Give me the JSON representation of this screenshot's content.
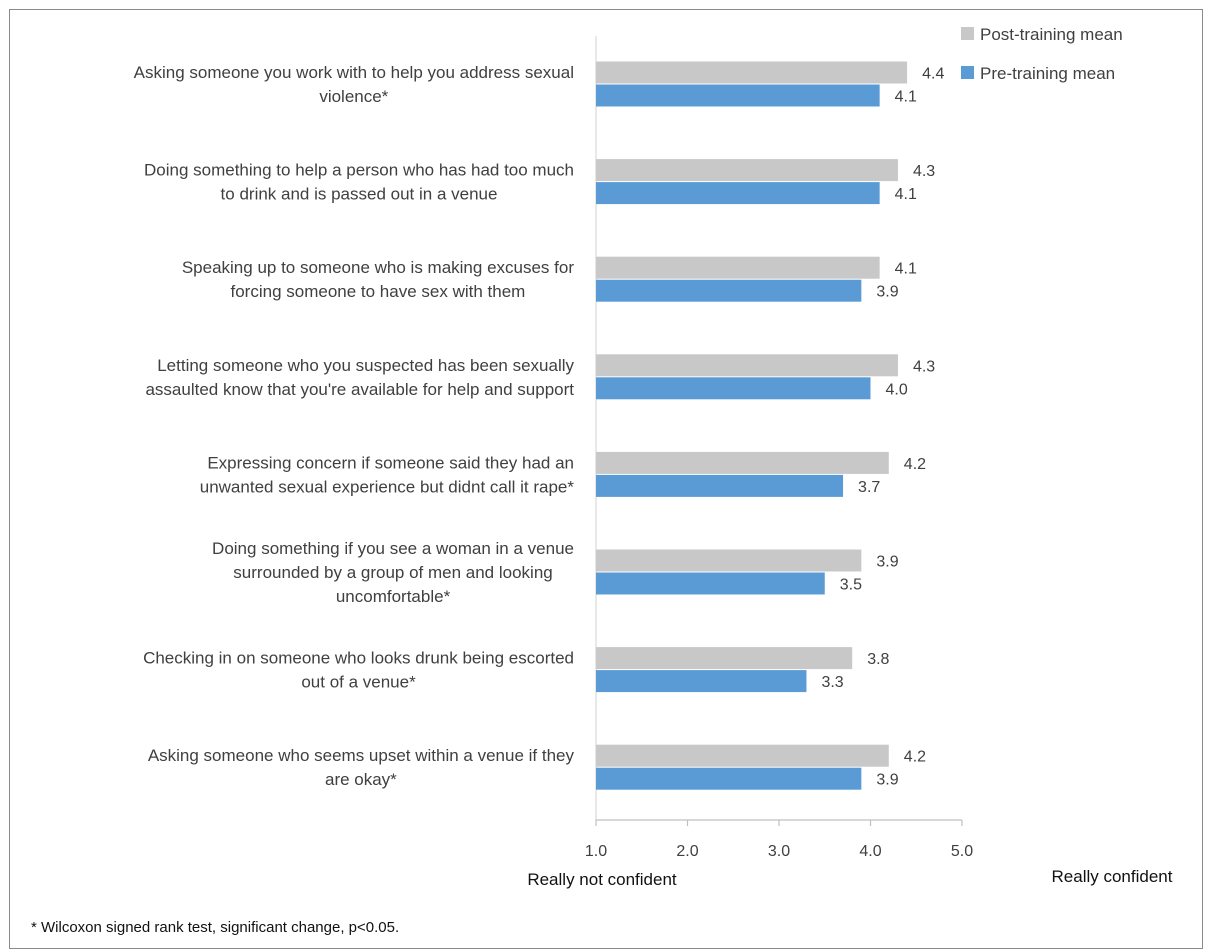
{
  "chart_data": {
    "type": "bar",
    "orientation": "horizontal",
    "categories": [
      [
        "Asking someone you work with to help you address sexual",
        "violence*"
      ],
      [
        "Doing something to help a person who has had too much",
        "to drink and is passed out in a venue"
      ],
      [
        "Speaking up to someone who is making excuses for",
        "forcing someone to have sex with them"
      ],
      [
        "Letting someone who you suspected has been sexually",
        "assaulted know that you're available for help and support"
      ],
      [
        "Expressing concern if someone said they had an",
        "unwanted sexual experience but didnt call it rape*"
      ],
      [
        "Doing something if you see a woman in a venue",
        "surrounded by a group of men and looking",
        "uncomfortable*"
      ],
      [
        "Checking in on someone who looks drunk being escorted",
        "out of a venue*"
      ],
      [
        "Asking someone who seems upset within a venue if they",
        "are okay*"
      ]
    ],
    "series": [
      {
        "name": "Post-training mean",
        "color": "#c8c8c8",
        "values": [
          4.4,
          4.3,
          4.1,
          4.3,
          4.2,
          3.9,
          3.8,
          4.2
        ],
        "labels": [
          "4.4",
          "4.3",
          "4.1",
          "4.3",
          "4.2",
          "3.9",
          "3.8",
          "4.2"
        ]
      },
      {
        "name": "Pre-training mean",
        "color": "#5b9bd5",
        "values": [
          4.1,
          4.1,
          3.9,
          4.0,
          3.7,
          3.5,
          3.3,
          3.9
        ],
        "labels": [
          "4.1",
          "4.1",
          "3.9",
          "4.0",
          "3.7",
          "3.5",
          "3.3",
          "3.9"
        ]
      }
    ],
    "xlim": [
      1.0,
      5.0
    ],
    "xticks": [
      "1.0",
      "2.0",
      "3.0",
      "4.0",
      "5.0"
    ],
    "xlabel_left": "Really not confident",
    "xlabel_right": "Really confident",
    "legend_position": "top-right",
    "grid": false
  },
  "footnote": "* Wilcoxon signed rank test, significant change, p<0.05."
}
